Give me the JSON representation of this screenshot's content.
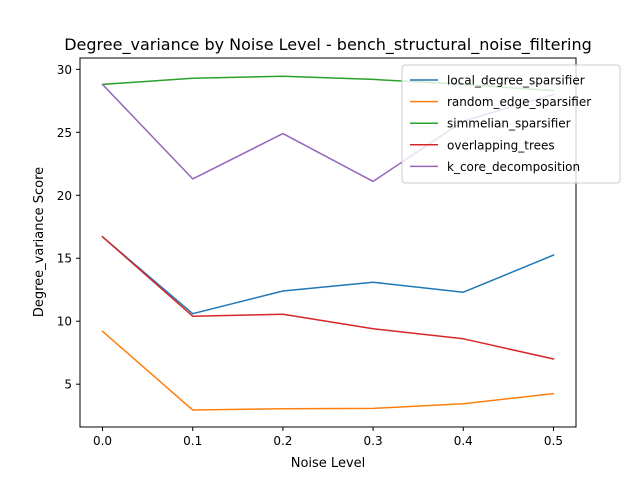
{
  "chart_data": {
    "type": "line",
    "title": "Degree_variance by Noise Level - bench_structural_noise_filtering",
    "xlabel": "Noise Level",
    "ylabel": "Degree_variance Score",
    "x": [
      0.0,
      0.1,
      0.2,
      0.3,
      0.4,
      0.5
    ],
    "x_tick_labels": [
      "0.0",
      "0.1",
      "0.2",
      "0.3",
      "0.4",
      "0.5"
    ],
    "xlim": [
      -0.025,
      0.525
    ],
    "y_ticks": [
      5,
      10,
      15,
      20,
      25,
      30
    ],
    "y_tick_labels": [
      "5",
      "10",
      "15",
      "20",
      "25",
      "30"
    ],
    "ylim": [
      1.6,
      30.9
    ],
    "grid": false,
    "legend_position": "top-right",
    "series": [
      {
        "name": "local_degree_sparsifier",
        "color": "#1f77b4",
        "values": [
          16.7,
          10.6,
          12.4,
          13.1,
          12.3,
          15.25
        ]
      },
      {
        "name": "random_edge_sparsifier",
        "color": "#ff7f0e",
        "values": [
          9.2,
          2.95,
          3.05,
          3.08,
          3.45,
          4.25
        ]
      },
      {
        "name": "simmelian_sparsifier",
        "color": "#2ca02c",
        "values": [
          28.8,
          29.3,
          29.45,
          29.2,
          28.8,
          28.3
        ]
      },
      {
        "name": "overlapping_trees",
        "color": "#d62728",
        "values": [
          16.7,
          10.4,
          10.55,
          9.4,
          8.6,
          7.0
        ]
      },
      {
        "name": "k_core_decomposition",
        "color": "#9467bd",
        "values": [
          28.8,
          21.3,
          24.9,
          21.1,
          25.9,
          28.0
        ]
      }
    ]
  }
}
